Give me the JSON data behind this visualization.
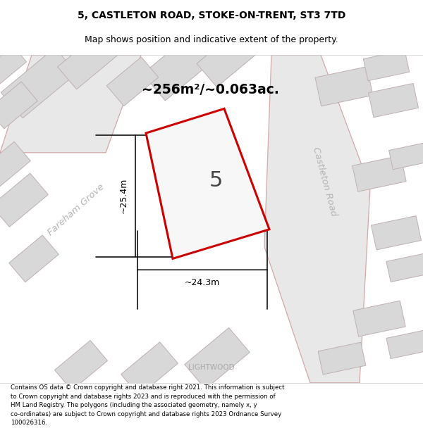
{
  "title_line1": "5, CASTLETON ROAD, STOKE-ON-TRENT, ST3 7TD",
  "title_line2": "Map shows position and indicative extent of the property.",
  "footer_text": "Contains OS data © Crown copyright and database right 2021. This information is subject\nto Crown copyright and database rights 2023 and is reproduced with the permission of\nHM Land Registry. The polygons (including the associated geometry, namely x, y\nco-ordinates) are subject to Crown copyright and database rights 2023 Ordnance Survey\n100026316.",
  "area_label": "~256m²/~0.063ac.",
  "width_label": "~24.3m",
  "height_label": "~25.4m",
  "plot_number": "5",
  "street_label_left": "Fareham Grove",
  "street_label_right": "Castleton Road",
  "street_label_bottom": "LIGHTWOOD",
  "bg_color": "#f0f0f0",
  "plot_outline_color": "#cc0000",
  "dim_line_color": "#111111",
  "street_edge_color": "#d4a8a8",
  "street_fill_color": "#e8e8e8",
  "building_fc": "#d8d8d8",
  "building_ec": "#c0b0b0"
}
